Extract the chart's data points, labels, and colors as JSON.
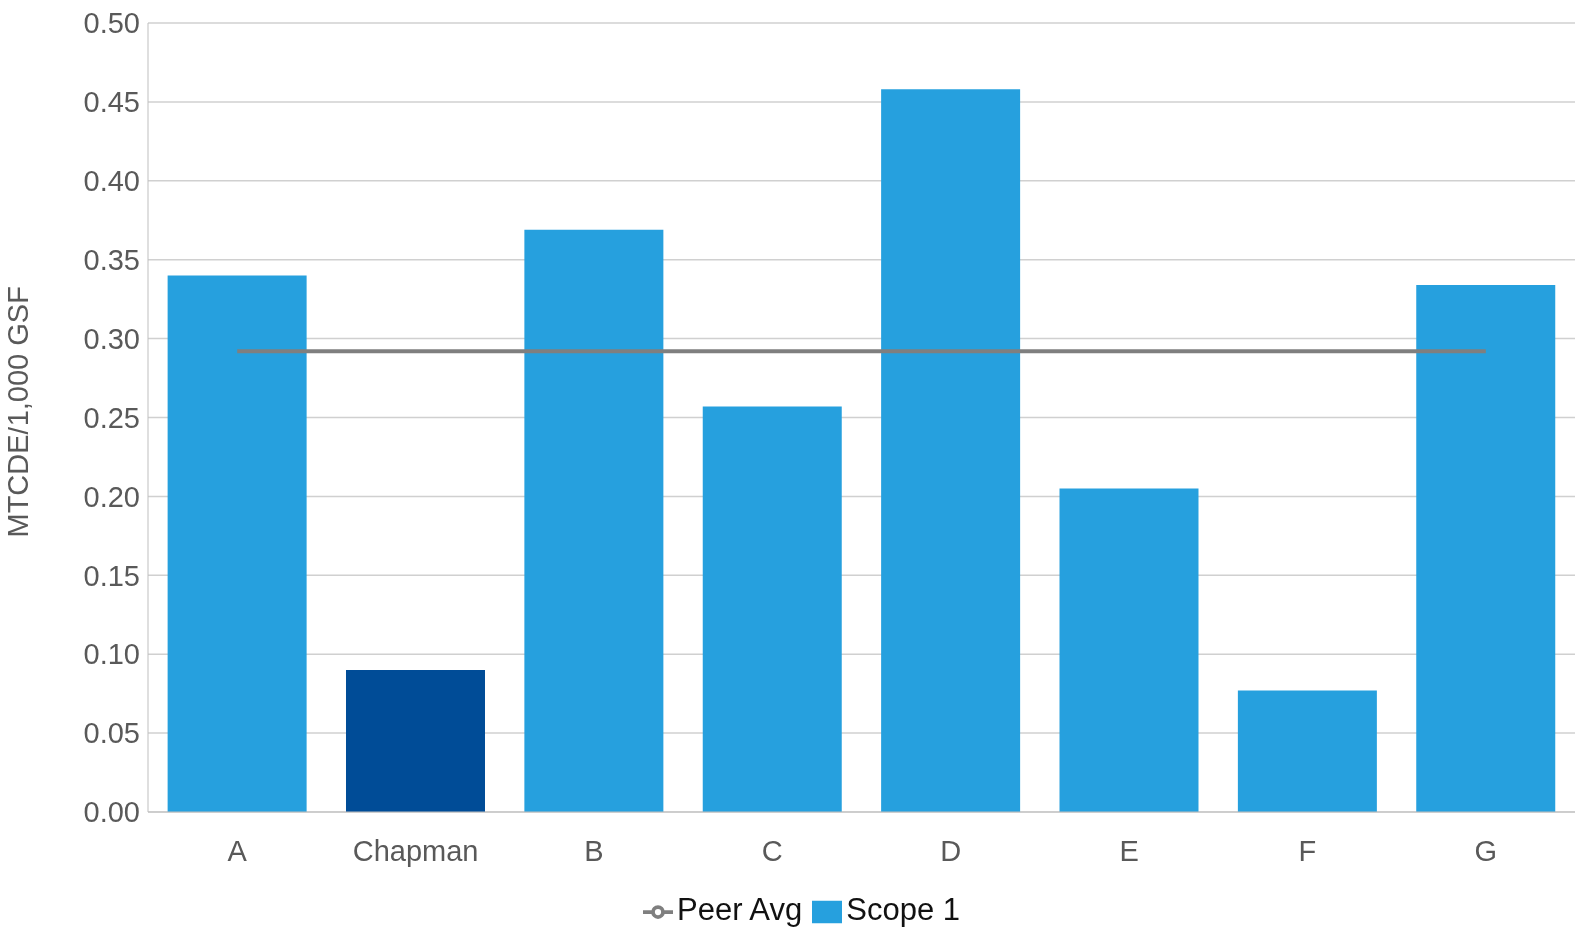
{
  "chart_data": {
    "type": "bar",
    "ylabel": "MTCDE/1,000 GSF",
    "categories": [
      "A",
      "Chapman",
      "B",
      "C",
      "D",
      "E",
      "F",
      "G"
    ],
    "series": [
      {
        "name": "Scope 1",
        "color": "#26a0de",
        "colors": [
          "#26a0de",
          "#004c97",
          "#26a0de",
          "#26a0de",
          "#26a0de",
          "#26a0de",
          "#26a0de",
          "#26a0de"
        ],
        "values": [
          0.34,
          0.09,
          0.369,
          0.257,
          0.458,
          0.205,
          0.077,
          0.334
        ]
      },
      {
        "name": "Peer Avg",
        "type": "line",
        "color": "#7f7f7f",
        "values": [
          0.292,
          0.292,
          0.292,
          0.292,
          0.292,
          0.292,
          0.292,
          0.292
        ]
      }
    ],
    "ylim": [
      0,
      0.5
    ],
    "yticks": [
      {
        "value": 0,
        "label": "0.00"
      },
      0.05,
      {
        "value": 0.1,
        "label": "0.10"
      },
      0.15,
      {
        "value": 0.2,
        "label": "0.20"
      },
      0.25,
      {
        "value": 0.3,
        "label": "0.30"
      },
      0.35,
      {
        "value": 0.4,
        "label": "0.40"
      },
      0.45,
      {
        "value": 0.5,
        "label": "0.50"
      }
    ],
    "grid": "y",
    "legend": "bottom",
    "marker": "none"
  }
}
